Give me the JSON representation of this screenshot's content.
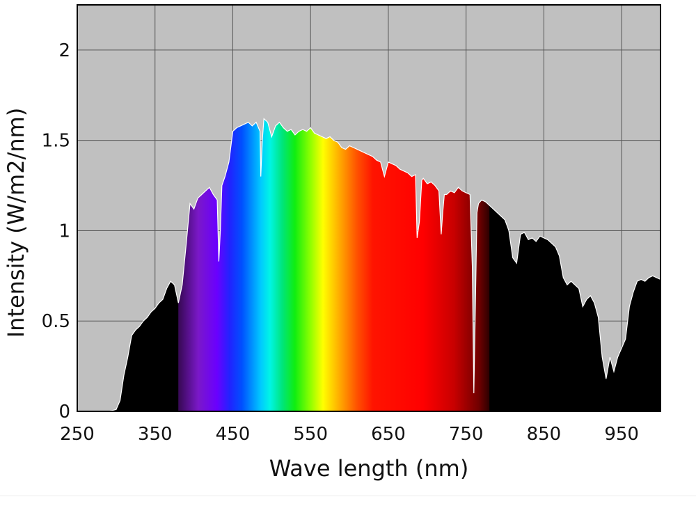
{
  "chart_data": {
    "type": "area",
    "title": "",
    "xlabel": "Wave length (nm)",
    "ylabel": "Intensity (W/m2/nm)",
    "xlim": [
      250,
      1000
    ],
    "ylim": [
      0,
      2.25
    ],
    "xticks": [
      250,
      350,
      450,
      550,
      650,
      750,
      850,
      950
    ],
    "xtick_labels": [
      "250",
      "350",
      "450",
      "550",
      "650",
      "750",
      "850",
      "950"
    ],
    "yticks": [
      0,
      0.5,
      1,
      1.5,
      2
    ],
    "ytick_labels": [
      "0",
      "0.5",
      "1",
      "1.5",
      "2"
    ],
    "grid": true,
    "background_color": "#c0c0c0",
    "fill_outside_visible": "#000000",
    "outline_color": "#ffffff",
    "visible_band": [
      380,
      780
    ],
    "series": [
      {
        "x": [
          250,
          280,
          290,
          300,
          305,
          310,
          315,
          320,
          325,
          330,
          335,
          340,
          345,
          350,
          355,
          360,
          365,
          370,
          375,
          380,
          385,
          390,
          395,
          400,
          405,
          410,
          415,
          420,
          425,
          430,
          432,
          434,
          436,
          440,
          445,
          450,
          455,
          460,
          465,
          470,
          475,
          480,
          485,
          486,
          488,
          490,
          495,
          500,
          505,
          510,
          515,
          520,
          525,
          530,
          535,
          540,
          545,
          550,
          555,
          560,
          565,
          570,
          575,
          580,
          585,
          590,
          595,
          600,
          605,
          610,
          615,
          620,
          625,
          630,
          635,
          640,
          645,
          650,
          655,
          660,
          665,
          670,
          675,
          680,
          685,
          687,
          690,
          693,
          695,
          700,
          705,
          710,
          715,
          718,
          720,
          722,
          725,
          730,
          735,
          740,
          745,
          750,
          755,
          758,
          760,
          762,
          764,
          766,
          770,
          775,
          780,
          785,
          790,
          795,
          800,
          805,
          810,
          815,
          820,
          825,
          830,
          835,
          840,
          845,
          850,
          855,
          860,
          865,
          870,
          875,
          880,
          885,
          890,
          895,
          900,
          905,
          910,
          915,
          920,
          925,
          930,
          935,
          940,
          945,
          950,
          955,
          960,
          965,
          970,
          975,
          980,
          985,
          990,
          995,
          1000
        ],
        "values": [
          0.0,
          0.0,
          0.0,
          0.01,
          0.06,
          0.2,
          0.3,
          0.42,
          0.45,
          0.47,
          0.5,
          0.52,
          0.55,
          0.57,
          0.6,
          0.62,
          0.68,
          0.72,
          0.7,
          0.6,
          0.7,
          0.92,
          1.15,
          1.12,
          1.18,
          1.2,
          1.22,
          1.24,
          1.2,
          1.17,
          0.83,
          1.0,
          1.25,
          1.3,
          1.38,
          1.55,
          1.57,
          1.58,
          1.59,
          1.6,
          1.58,
          1.6,
          1.55,
          1.3,
          1.5,
          1.62,
          1.6,
          1.52,
          1.58,
          1.6,
          1.57,
          1.55,
          1.56,
          1.53,
          1.55,
          1.56,
          1.55,
          1.57,
          1.54,
          1.53,
          1.52,
          1.51,
          1.52,
          1.5,
          1.49,
          1.46,
          1.45,
          1.47,
          1.46,
          1.45,
          1.44,
          1.43,
          1.42,
          1.41,
          1.39,
          1.38,
          1.3,
          1.38,
          1.37,
          1.36,
          1.34,
          1.33,
          1.32,
          1.3,
          1.31,
          0.96,
          1.05,
          1.28,
          1.29,
          1.26,
          1.27,
          1.25,
          1.22,
          0.98,
          1.1,
          1.2,
          1.2,
          1.22,
          1.21,
          1.24,
          1.22,
          1.21,
          1.2,
          0.8,
          0.1,
          0.6,
          1.1,
          1.15,
          1.17,
          1.16,
          1.14,
          1.12,
          1.1,
          1.08,
          1.06,
          1.0,
          0.85,
          0.82,
          0.98,
          0.99,
          0.95,
          0.96,
          0.94,
          0.97,
          0.96,
          0.95,
          0.93,
          0.91,
          0.86,
          0.74,
          0.7,
          0.72,
          0.7,
          0.68,
          0.58,
          0.62,
          0.64,
          0.6,
          0.52,
          0.3,
          0.18,
          0.3,
          0.22,
          0.3,
          0.35,
          0.4,
          0.58,
          0.66,
          0.72,
          0.73,
          0.72,
          0.74,
          0.75,
          0.74,
          0.73
        ]
      }
    ]
  }
}
